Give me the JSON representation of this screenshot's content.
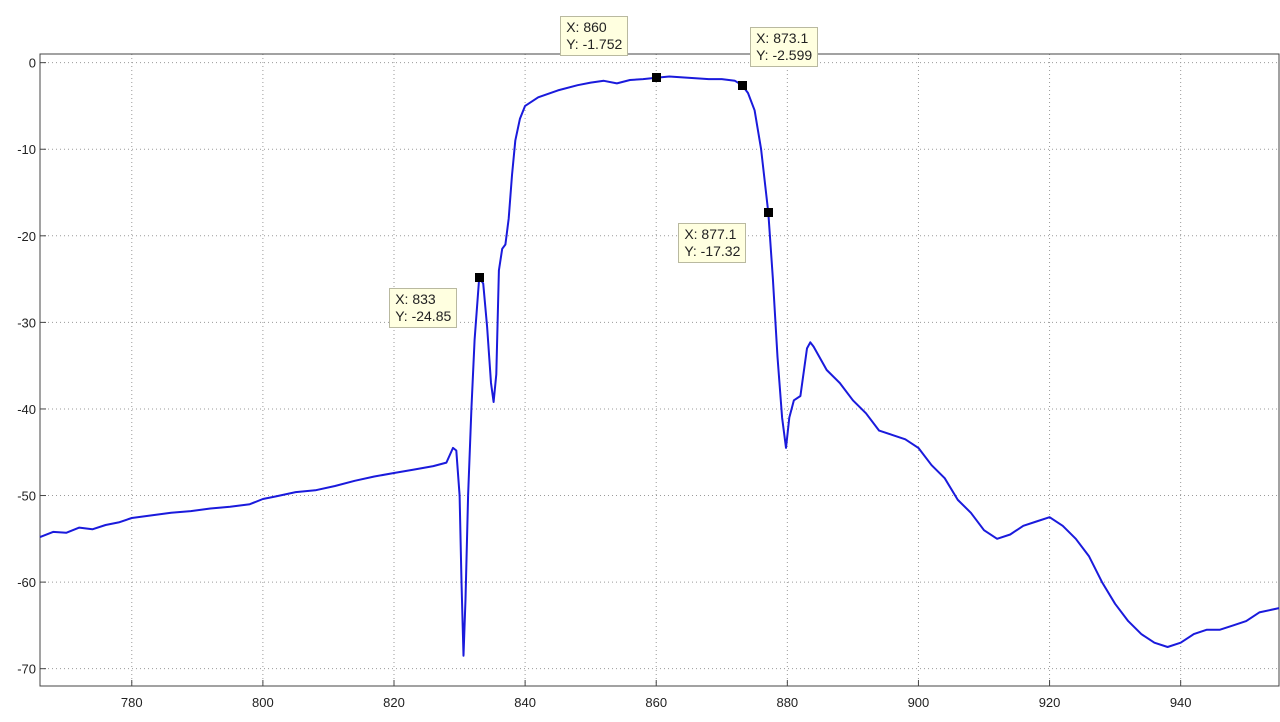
{
  "chart_data": {
    "type": "line",
    "title": "",
    "xlabel": "",
    "ylabel": "",
    "xlim": [
      766,
      955
    ],
    "ylim": [
      -72,
      1
    ],
    "grid": true,
    "xticks": [
      780,
      800,
      820,
      840,
      860,
      880,
      900,
      920,
      940
    ],
    "yticks": [
      0,
      -10,
      -20,
      -30,
      -40,
      -50,
      -60,
      -70
    ],
    "line_color": "#1a1adc",
    "series": [
      {
        "points": [
          [
            766,
            -54.8
          ],
          [
            768,
            -54.2
          ],
          [
            770,
            -54.3
          ],
          [
            772,
            -53.7
          ],
          [
            774,
            -53.9
          ],
          [
            776,
            -53.4
          ],
          [
            778,
            -53.1
          ],
          [
            780,
            -52.6
          ],
          [
            783,
            -52.3
          ],
          [
            786,
            -52.0
          ],
          [
            789,
            -51.8
          ],
          [
            792,
            -51.5
          ],
          [
            795,
            -51.3
          ],
          [
            798,
            -51.0
          ],
          [
            800,
            -50.4
          ],
          [
            802,
            -50.1
          ],
          [
            805,
            -49.6
          ],
          [
            808,
            -49.4
          ],
          [
            811,
            -48.9
          ],
          [
            814,
            -48.3
          ],
          [
            817,
            -47.8
          ],
          [
            820,
            -47.4
          ],
          [
            823,
            -47.0
          ],
          [
            826,
            -46.6
          ],
          [
            828,
            -46.2
          ],
          [
            829,
            -44.5
          ],
          [
            829.5,
            -44.8
          ],
          [
            830,
            -50.0
          ],
          [
            830.3,
            -60.0
          ],
          [
            830.6,
            -68.5
          ],
          [
            830.9,
            -62.0
          ],
          [
            831.3,
            -50.0
          ],
          [
            831.8,
            -40.0
          ],
          [
            832.3,
            -32.0
          ],
          [
            833,
            -24.85
          ],
          [
            833.6,
            -25.5
          ],
          [
            834.2,
            -30.5
          ],
          [
            834.8,
            -37.0
          ],
          [
            835.2,
            -39.2
          ],
          [
            835.6,
            -36.0
          ],
          [
            836,
            -24.0
          ],
          [
            836.5,
            -21.5
          ],
          [
            837,
            -21.0
          ],
          [
            837.5,
            -18.0
          ],
          [
            838,
            -13.0
          ],
          [
            838.5,
            -9.0
          ],
          [
            839.2,
            -6.5
          ],
          [
            840,
            -5.0
          ],
          [
            842,
            -4.0
          ],
          [
            845,
            -3.2
          ],
          [
            848,
            -2.6
          ],
          [
            850,
            -2.3
          ],
          [
            852,
            -2.1
          ],
          [
            854,
            -2.4
          ],
          [
            856,
            -2.0
          ],
          [
            858,
            -1.9
          ],
          [
            860,
            -1.752
          ],
          [
            862,
            -1.6
          ],
          [
            864,
            -1.7
          ],
          [
            866,
            -1.8
          ],
          [
            868,
            -1.9
          ],
          [
            870,
            -1.9
          ],
          [
            872,
            -2.1
          ],
          [
            873.1,
            -2.599
          ],
          [
            874,
            -3.5
          ],
          [
            875,
            -5.5
          ],
          [
            876,
            -10.0
          ],
          [
            877.1,
            -17.32
          ],
          [
            877.8,
            -25.0
          ],
          [
            878.5,
            -34.0
          ],
          [
            879.2,
            -41.0
          ],
          [
            879.8,
            -44.5
          ],
          [
            880.3,
            -41.0
          ],
          [
            881,
            -39.0
          ],
          [
            882,
            -38.5
          ],
          [
            883,
            -33.0
          ],
          [
            883.5,
            -32.3
          ],
          [
            884,
            -32.8
          ],
          [
            886,
            -35.5
          ],
          [
            888,
            -37.0
          ],
          [
            890,
            -39.0
          ],
          [
            892,
            -40.5
          ],
          [
            894,
            -42.5
          ],
          [
            896,
            -43.0
          ],
          [
            898,
            -43.5
          ],
          [
            900,
            -44.5
          ],
          [
            902,
            -46.5
          ],
          [
            904,
            -48.0
          ],
          [
            906,
            -50.5
          ],
          [
            908,
            -52.0
          ],
          [
            910,
            -54.0
          ],
          [
            912,
            -55.0
          ],
          [
            914,
            -54.5
          ],
          [
            916,
            -53.5
          ],
          [
            918,
            -53.0
          ],
          [
            920,
            -52.5
          ],
          [
            922,
            -53.5
          ],
          [
            924,
            -55.0
          ],
          [
            926,
            -57.0
          ],
          [
            928,
            -60.0
          ],
          [
            930,
            -62.5
          ],
          [
            932,
            -64.5
          ],
          [
            934,
            -66.0
          ],
          [
            936,
            -67.0
          ],
          [
            938,
            -67.5
          ],
          [
            940,
            -67.0
          ],
          [
            942,
            -66.0
          ],
          [
            944,
            -65.5
          ],
          [
            946,
            -65.5
          ],
          [
            948,
            -65.0
          ],
          [
            950,
            -64.5
          ],
          [
            952,
            -63.5
          ],
          [
            955,
            -63.0
          ]
        ]
      }
    ],
    "datatips": [
      {
        "x": 833,
        "y": -24.85,
        "x_text": "X: 833",
        "y_text": "Y: -24.85"
      },
      {
        "x": 860,
        "y": -1.752,
        "x_text": "X: 860",
        "y_text": "Y: -1.752"
      },
      {
        "x": 873.1,
        "y": -2.599,
        "x_text": "X: 873.1",
        "y_text": "Y: -2.599"
      },
      {
        "x": 877.1,
        "y": -17.32,
        "x_text": "X: 877.1",
        "y_text": "Y: -17.32"
      }
    ]
  }
}
